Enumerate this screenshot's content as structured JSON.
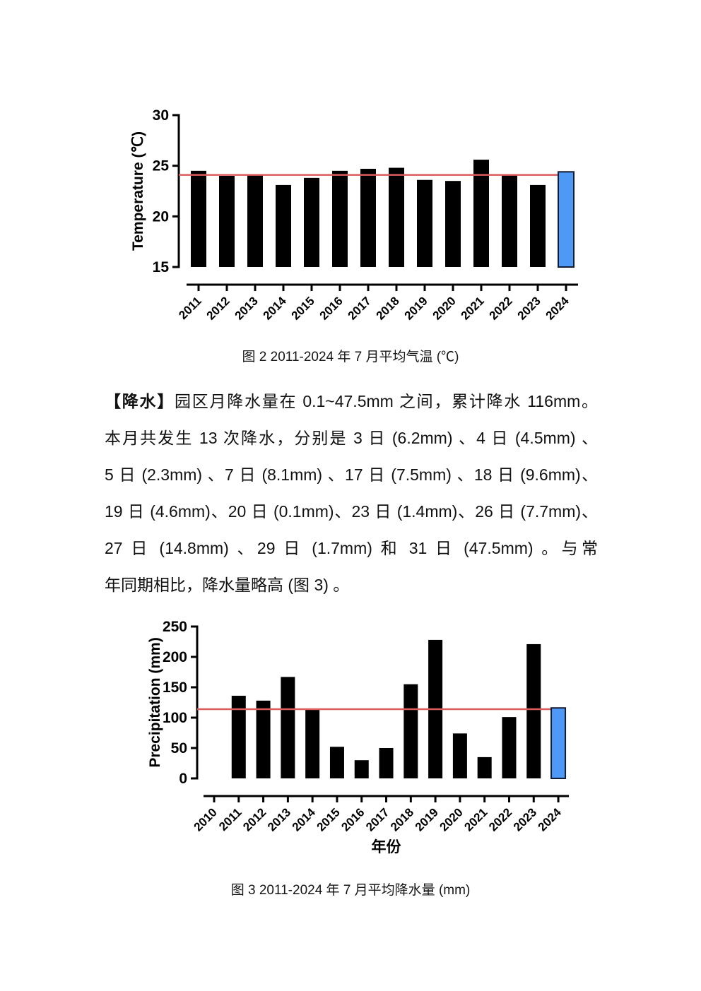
{
  "paragraph": {
    "bold_prefix": "【降水】",
    "lines": [
      "园区月降水量在 0.1~47.5mm 之间，累计降水 116mm。",
      "本月共发生 13 次降水，分别是 3 日 (6.2mm) 、4 日 (4.5mm) 、",
      "5 日 (2.3mm) 、7 日 (8.1mm) 、17 日 (7.5mm) 、18 日 (9.6mm)、",
      "19 日 (4.6mm)、20 日 (0.1mm)、23 日 (1.4mm)、26 日 (7.7mm)、",
      "27 日 (14.8mm) 、29 日 (1.7mm) 和 31 日 (47.5mm) 。与常",
      "年同期相比，降水量略高 (图 3) 。"
    ]
  },
  "chart_data": [
    {
      "type": "bar",
      "title": "图 2 2011-2024 年 7 月平均气温 (℃)",
      "ylabel": "Temperature (℃)",
      "xlabel": "",
      "categories": [
        "2011",
        "2012",
        "2013",
        "2014",
        "2015",
        "2016",
        "2017",
        "2018",
        "2019",
        "2020",
        "2021",
        "2022",
        "2023",
        "2024"
      ],
      "values": [
        24.5,
        24.0,
        24.1,
        23.1,
        23.8,
        24.5,
        24.7,
        24.8,
        23.6,
        23.5,
        25.6,
        24.1,
        23.1,
        24.4
      ],
      "ylim": [
        15,
        30
      ],
      "yticks": [
        15,
        20,
        25,
        30
      ],
      "reference_line": 24.1,
      "highlight_last": true,
      "grid": false,
      "legend": "none",
      "bar_color": "#000000",
      "highlight_color": "#4D99F5",
      "highlight_border": "#131c33",
      "ref_color": "#DB5C5C"
    },
    {
      "type": "bar",
      "title": "图 3 2011-2024 年 7 月平均降水量 (mm)",
      "ylabel": "Precipitation (mm)",
      "xlabel": "年份",
      "categories": [
        "2010",
        "2011",
        "2012",
        "2013",
        "2014",
        "2015",
        "2016",
        "2017",
        "2018",
        "2019",
        "2020",
        "2021",
        "2022",
        "2023",
        "2024"
      ],
      "values": [
        null,
        136,
        128,
        167,
        115,
        52,
        30,
        50,
        155,
        228,
        74,
        35,
        101,
        221,
        116
      ],
      "ylim": [
        0,
        250
      ],
      "yticks": [
        0,
        50,
        100,
        150,
        200,
        250
      ],
      "reference_line": 114,
      "highlight_last": true,
      "grid": false,
      "legend": "none",
      "bar_color": "#000000",
      "highlight_color": "#4D99F5",
      "highlight_border": "#131c33",
      "ref_color": "#DB5C5C"
    }
  ]
}
